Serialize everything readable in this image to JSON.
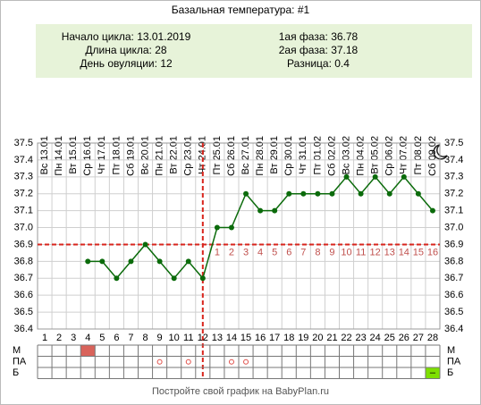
{
  "chart_data": {
    "type": "line",
    "title": "Базальная температура: #1",
    "summary_left": [
      {
        "label": "Начало цикла:",
        "value": "13.01.2019"
      },
      {
        "label": "Длина цикла:",
        "value": 28
      },
      {
        "label": "День овуляции:",
        "value": 12
      }
    ],
    "summary_right": [
      {
        "label": "1ая фаза:",
        "value": 36.78
      },
      {
        "label": "2ая фаза:",
        "value": 37.18
      },
      {
        "label": "Разница:",
        "value": 0.4
      }
    ],
    "dates": [
      "Вс 13.01",
      "Пн 14.01",
      "Вт 15.01",
      "Ср 16.01",
      "Чт 17.01",
      "Пт 18.01",
      "Сб 19.01",
      "Вс 20.01",
      "Пн 21.01",
      "Вт 22.01",
      "Ср 23.01",
      "Чт 24.01",
      "Пт 25.01",
      "Сб 26.01",
      "Вс 27.01",
      "Пн 28.01",
      "Вт 29.01",
      "Ср 30.01",
      "Чт 31.01",
      "Пт 01.02",
      "Сб 02.02",
      "Вс 03.02",
      "Пн 04.02",
      "Вт 05.02",
      "Ср 06.02",
      "Чт 07.02",
      "Пт 08.02",
      "Сб 09.02"
    ],
    "x": [
      1,
      2,
      3,
      4,
      5,
      6,
      7,
      8,
      9,
      10,
      11,
      12,
      13,
      14,
      15,
      16,
      17,
      18,
      19,
      20,
      21,
      22,
      23,
      24,
      25,
      26,
      27,
      28
    ],
    "values": [
      null,
      null,
      null,
      36.8,
      36.8,
      36.7,
      36.8,
      36.9,
      36.8,
      36.7,
      36.8,
      36.7,
      37.0,
      37.0,
      37.2,
      37.1,
      37.1,
      37.2,
      37.2,
      37.2,
      37.2,
      37.3,
      37.2,
      37.3,
      37.2,
      37.3,
      37.2,
      37.1
    ],
    "color": "#0b6b0b",
    "ylim": [
      36.4,
      37.5
    ],
    "yticks": [
      37.5,
      37.4,
      37.3,
      37.2,
      37.1,
      {
        "value": 37.0,
        "label": "37.0"
      },
      36.9,
      36.8,
      36.7,
      36.6,
      36.5,
      36.4
    ],
    "grid": true,
    "coverline": 36.9,
    "ovulation_day": 12,
    "marker_color": "#d9241c",
    "luteal_days": [
      1,
      2,
      3,
      4,
      5,
      6,
      7,
      8,
      9,
      10,
      11,
      12,
      13,
      14,
      15,
      16
    ],
    "rows": [
      {
        "label": "М",
        "days": [
          4
        ],
        "color": "#d9635b"
      },
      {
        "label": "ПА",
        "days": [
          9,
          11,
          14,
          15
        ],
        "color": "#e0504a"
      },
      {
        "label": "Б",
        "days": [
          28
        ],
        "color": "#7ee000",
        "mark": "–"
      }
    ],
    "footer": "Постройте свой график на BabyPlan.ru"
  }
}
